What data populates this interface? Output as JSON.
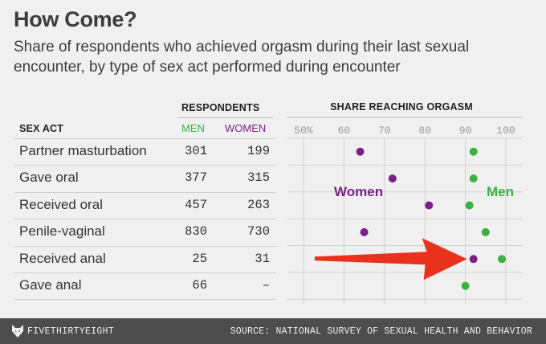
{
  "title": "How Come?",
  "subtitle": "Share of respondents who achieved orgasm during their last sexual encounter, by type of sex act performed during encounter",
  "table": {
    "respondents_header": "RESPONDENTS",
    "sex_act_header": "SEX ACT",
    "men_header": "MEN",
    "women_header": "WOMEN",
    "rows": [
      {
        "act": "Partner masturbation",
        "men": "301",
        "women": "199"
      },
      {
        "act": "Gave oral",
        "men": "377",
        "women": "315"
      },
      {
        "act": "Received oral",
        "men": "457",
        "women": "263"
      },
      {
        "act": "Penile-vaginal",
        "men": "830",
        "women": "730"
      },
      {
        "act": "Received anal",
        "men": "25",
        "women": "31"
      },
      {
        "act": "Gave anal",
        "men": "66",
        "women": "–"
      }
    ]
  },
  "colors": {
    "men": "#3cb043",
    "women": "#7b1f86",
    "arrow": "#e8321e"
  },
  "chart_data": {
    "type": "scatter",
    "title": "SHARE REACHING ORGASM",
    "x_ticks": [
      "50%",
      "60",
      "70",
      "80",
      "90",
      "100"
    ],
    "xlim": [
      50,
      100
    ],
    "categories": [
      "Partner masturbation",
      "Gave oral",
      "Received oral",
      "Penile-vaginal",
      "Received anal",
      "Gave anal"
    ],
    "series": [
      {
        "name": "Women",
        "values": [
          64,
          72,
          81,
          65,
          92,
          null
        ]
      },
      {
        "name": "Men",
        "values": [
          92,
          92,
          91,
          95,
          99,
          90
        ]
      }
    ],
    "annotations": [
      "Women",
      "Men"
    ],
    "arrow_target": {
      "series": "Women",
      "category": "Received anal"
    }
  },
  "footer": {
    "brand": "FIVETHIRTYEIGHT",
    "source": "SOURCE: NATIONAL SURVEY OF SEXUAL HEALTH AND BEHAVIOR"
  }
}
